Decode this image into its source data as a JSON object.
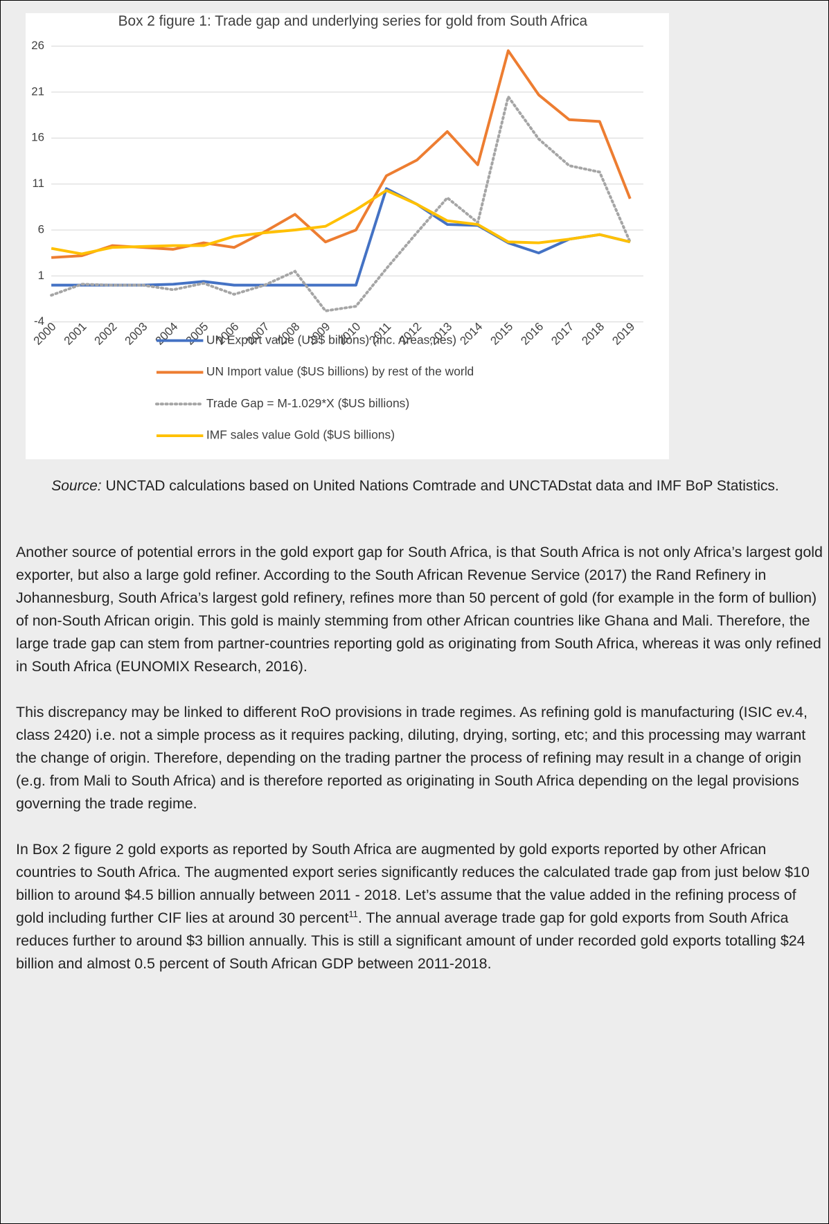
{
  "chart_data": {
    "type": "line",
    "title": "Box 2 figure 1: Trade gap and underlying series for gold from South Africa",
    "categories": [
      "2000",
      "2001",
      "2002",
      "2003",
      "2004",
      "2005",
      "2006",
      "2007",
      "2008",
      "2009",
      "2010",
      "2011",
      "2012",
      "2013",
      "2014",
      "2015",
      "2016",
      "2017",
      "2018",
      "2019"
    ],
    "series": [
      {
        "name": "UN Export value (US$ billions) (inc. Areas,nes)",
        "color": "#4472c4",
        "style": "solid",
        "values": [
          0.0,
          0.0,
          0.0,
          0.0,
          0.1,
          0.4,
          0.0,
          0.0,
          0.0,
          0.0,
          0.0,
          10.5,
          8.8,
          6.6,
          6.5,
          4.6,
          3.5,
          5.0,
          5.5,
          4.7
        ]
      },
      {
        "name": "UN Import value ($US billions) by rest of the world",
        "color": "#ed7d31",
        "style": "solid",
        "values": [
          3.0,
          3.2,
          4.3,
          4.1,
          3.9,
          4.6,
          4.1,
          5.8,
          7.7,
          4.7,
          6.0,
          11.9,
          13.6,
          16.7,
          13.1,
          25.5,
          20.7,
          18.0,
          17.8,
          9.4
        ]
      },
      {
        "name": "Trade Gap = M-1.029*X ($US billions)",
        "color": "#a5a5a5",
        "style": "dotted",
        "values": [
          -1.1,
          0.1,
          0.0,
          0.0,
          -0.5,
          0.2,
          -1.0,
          0.0,
          1.5,
          -2.8,
          -2.3,
          1.8,
          5.7,
          9.5,
          6.8,
          20.5,
          15.9,
          13.0,
          12.3,
          4.7
        ]
      },
      {
        "name": "IMF sales value Gold ($US billions)",
        "color": "#ffc000",
        "style": "solid",
        "values": [
          4.0,
          3.4,
          4.1,
          4.2,
          4.3,
          4.3,
          5.3,
          5.7,
          6.0,
          6.4,
          8.2,
          10.3,
          8.8,
          7.0,
          6.6,
          4.7,
          4.6,
          5.0,
          5.5,
          4.7
        ]
      }
    ],
    "ylim": [
      -4,
      26
    ],
    "yticks": [
      -4,
      1,
      6,
      11,
      16,
      21,
      26
    ],
    "grid": true
  },
  "caption": {
    "label": "Source:",
    "text": "UNCTAD calculations based on United Nations Comtrade and UNCTADstat data and IMF BoP Statistics."
  },
  "paragraphs": [
    {
      "text": "Another source of potential errors in the gold export gap for South Africa, is that South Africa is not only Africa’s largest gold exporter, but also a large gold refiner. According to the South African Revenue Service (2017) the Rand Refinery in Johannesburg, South Africa’s largest gold refinery, refines more than 50 percent of gold (for example in the form of bullion) of non-South African origin. This gold is mainly stemming from other African countries like Ghana and Mali. Therefore, the large trade gap can stem from partner-countries reporting gold as originating from South Africa, whereas it was only refined in South Africa (EUNOMIX Research, 2016)."
    },
    {
      "text": "This discrepancy may be linked to different RoO provisions in trade regimes. As refining gold is manufacturing (ISIC ev.4, class 2420) i.e. not a simple process as it requires packing, diluting, drying, sorting, etc; and this processing may warrant the change of origin. Therefore, depending on the trading partner the process of refining may result in a change of origin (e.g. from Mali to South Africa) and is therefore reported as originating in South Africa depending on the legal provisions governing the trade regime."
    },
    {
      "text_before": "In Box 2 figure 2 gold exports as reported by South Africa are augmented by gold exports reported by other African countries to South Africa. The augmented export series significantly reduces the calculated trade gap from just below $10 billion to around $4.5 billion annually between 2011 - 2018. Let’s assume that the value added in the refining process of gold including further CIF lies at around 30 percent",
      "footnote": "11",
      "text_after": ". The annual average trade gap for gold exports from South Africa reduces further to around $3 billion annually. This is still a significant amount of under recorded gold exports totalling $24 billion and almost 0.5 percent of South African GDP between 2011-2018."
    }
  ]
}
